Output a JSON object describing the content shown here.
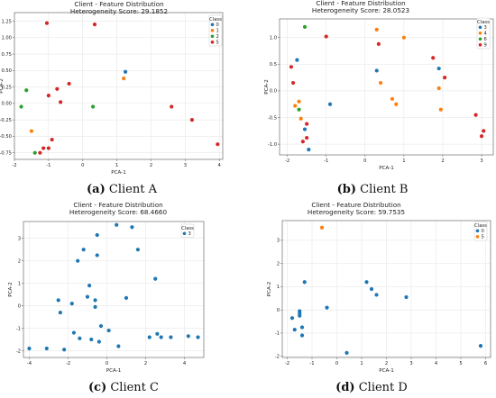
{
  "chart_data": [
    {
      "type": "scatter",
      "title": "Client - Feature Distribution",
      "subtitle": "Heterogeneity Score: 29.1852",
      "xlabel": "PCA-1",
      "ylabel": "PCA-2",
      "xlim": [
        -2.0,
        4.1
      ],
      "ylim": [
        -0.85,
        1.38
      ],
      "xticks": [
        "-2",
        "-1",
        "0",
        "1",
        "2",
        "3",
        "4"
      ],
      "xtick_values": [
        -2,
        -1,
        0,
        1,
        2,
        3,
        4
      ],
      "yticks": [
        "-0.75",
        "-0.50",
        "-0.25",
        "0.00",
        "0.25",
        "0.50",
        "0.75",
        "1.00",
        "1.25"
      ],
      "ytick_values": [
        -0.75,
        -0.5,
        -0.25,
        0,
        0.25,
        0.5,
        0.75,
        1.0,
        1.25
      ],
      "grid": true,
      "legend_title": "Class",
      "legend_position": "top-right",
      "caption_letter": "(a)",
      "caption_text": "Client A",
      "series": [
        {
          "name": "0",
          "color": "#1f77b4",
          "points": [
            [
              1.25,
              0.48
            ]
          ]
        },
        {
          "name": "1",
          "color": "#ff7f0e",
          "points": [
            [
              -1.5,
              -0.42
            ],
            [
              1.2,
              0.38
            ]
          ]
        },
        {
          "name": "2",
          "color": "#2ca02c",
          "points": [
            [
              -1.8,
              -0.05
            ],
            [
              -1.65,
              0.2
            ],
            [
              -1.4,
              -0.75
            ],
            [
              0.3,
              -0.05
            ]
          ]
        },
        {
          "name": "5",
          "color": "#d62728",
          "points": [
            [
              -1.05,
              1.22
            ],
            [
              0.35,
              1.2
            ],
            [
              -1.15,
              -0.68
            ],
            [
              -1.0,
              -0.68
            ],
            [
              -0.9,
              -0.55
            ],
            [
              -1.25,
              -0.75
            ],
            [
              -0.75,
              0.22
            ],
            [
              -1.0,
              0.12
            ],
            [
              -0.65,
              0.02
            ],
            [
              -0.4,
              0.3
            ],
            [
              2.6,
              -0.05
            ],
            [
              3.2,
              -0.25
            ],
            [
              3.95,
              -0.62
            ]
          ]
        }
      ]
    },
    {
      "type": "scatter",
      "title": "Client - Feature Distribution",
      "subtitle": "Heterogeneity Score: 28.0523",
      "xlabel": "PCA-1",
      "ylabel": "PCA-2",
      "xlim": [
        -2.2,
        3.3
      ],
      "ylim": [
        -1.2,
        1.35
      ],
      "xticks": [
        "-2",
        "-1",
        "0",
        "1",
        "2",
        "3"
      ],
      "xtick_values": [
        -2,
        -1,
        0,
        1,
        2,
        3
      ],
      "yticks": [
        "-1.0",
        "-0.5",
        "0.0",
        "0.5",
        "1.0"
      ],
      "ytick_values": [
        -1.0,
        -0.5,
        0,
        0.5,
        1.0
      ],
      "grid": true,
      "legend_title": "Class",
      "legend_position": "top-right",
      "caption_letter": "(b)",
      "caption_text": "Client B",
      "series": [
        {
          "name": "3",
          "color": "#1f77b4",
          "points": [
            [
              -1.75,
              0.58
            ],
            [
              -0.9,
              -0.25
            ],
            [
              0.3,
              0.38
            ],
            [
              1.9,
              0.42
            ],
            [
              -1.55,
              -0.72
            ],
            [
              -1.45,
              -1.1
            ]
          ]
        },
        {
          "name": "4",
          "color": "#ff7f0e",
          "points": [
            [
              -1.8,
              -0.28
            ],
            [
              -1.7,
              -0.2
            ],
            [
              -1.65,
              -0.52
            ],
            [
              0.3,
              1.15
            ],
            [
              0.4,
              0.15
            ],
            [
              0.7,
              -0.15
            ],
            [
              0.8,
              -0.25
            ],
            [
              1.0,
              1.0
            ],
            [
              1.9,
              0.05
            ],
            [
              1.95,
              -0.35
            ]
          ]
        },
        {
          "name": "6",
          "color": "#2ca02c",
          "points": [
            [
              -1.55,
              1.2
            ],
            [
              -1.7,
              -0.35
            ]
          ]
        },
        {
          "name": "9",
          "color": "#d62728",
          "points": [
            [
              -1.9,
              0.45
            ],
            [
              -1.85,
              0.15
            ],
            [
              -1.0,
              1.02
            ],
            [
              0.35,
              0.88
            ],
            [
              1.75,
              0.62
            ],
            [
              2.05,
              0.25
            ],
            [
              2.85,
              -0.45
            ],
            [
              3.05,
              -0.75
            ],
            [
              3.0,
              -0.85
            ],
            [
              -1.5,
              -0.88
            ],
            [
              -1.6,
              -0.95
            ],
            [
              -1.5,
              -0.62
            ]
          ]
        }
      ]
    },
    {
      "type": "scatter",
      "title": "Client - Feature Distribution",
      "subtitle": "Heterogeneity Score: 68.4660",
      "xlabel": "PCA-1",
      "ylabel": "PCA-2",
      "xlim": [
        -4.3,
        5.0
      ],
      "ylim": [
        -2.3,
        3.75
      ],
      "xticks": [
        "-4",
        "-2",
        "0",
        "2",
        "4"
      ],
      "xtick_values": [
        -4,
        -2,
        0,
        2,
        4
      ],
      "yticks": [
        "-2",
        "-1",
        "0",
        "1",
        "2",
        "3"
      ],
      "ytick_values": [
        -2,
        -1,
        0,
        1,
        2,
        3
      ],
      "grid": true,
      "legend_title": "Class",
      "legend_position": "top-right",
      "caption_letter": "(c)",
      "caption_text": "Client C",
      "series": [
        {
          "name": "3",
          "color": "#1f77b4",
          "points": [
            [
              -4.0,
              -1.9
            ],
            [
              -3.1,
              -1.9
            ],
            [
              -2.5,
              0.25
            ],
            [
              -2.4,
              -0.3
            ],
            [
              -2.2,
              -1.95
            ],
            [
              -1.8,
              0.1
            ],
            [
              -1.7,
              -1.2
            ],
            [
              -1.5,
              2.0
            ],
            [
              -1.4,
              -1.45
            ],
            [
              -1.2,
              2.5
            ],
            [
              -1.0,
              0.4
            ],
            [
              -0.9,
              0.9
            ],
            [
              -0.8,
              -1.5
            ],
            [
              -0.6,
              0.25
            ],
            [
              -0.6,
              -0.05
            ],
            [
              -0.5,
              3.15
            ],
            [
              -0.5,
              2.25
            ],
            [
              -0.4,
              -1.6
            ],
            [
              -0.3,
              -0.9
            ],
            [
              0.1,
              -1.1
            ],
            [
              0.5,
              3.6
            ],
            [
              0.6,
              -1.8
            ],
            [
              1.0,
              0.35
            ],
            [
              1.3,
              3.5
            ],
            [
              1.6,
              2.5
            ],
            [
              2.2,
              -1.4
            ],
            [
              2.5,
              1.2
            ],
            [
              2.6,
              -1.25
            ],
            [
              2.8,
              -1.4
            ],
            [
              3.3,
              -1.4
            ],
            [
              4.2,
              -1.35
            ],
            [
              4.7,
              -1.4
            ]
          ]
        }
      ]
    },
    {
      "type": "scatter",
      "title": "Client - Feature Distribution",
      "subtitle": "Heterogeneity Score: 59.7535",
      "xlabel": "PCA-1",
      "ylabel": "PCA-2",
      "xlim": [
        -2.2,
        6.2
      ],
      "ylim": [
        -2.05,
        3.85
      ],
      "xticks": [
        "-2",
        "-1",
        "0",
        "1",
        "2",
        "3",
        "4",
        "5",
        "6"
      ],
      "xtick_values": [
        -2,
        -1,
        0,
        1,
        2,
        3,
        4,
        5,
        6
      ],
      "yticks": [
        "-2",
        "-1",
        "0",
        "1",
        "2",
        "3"
      ],
      "ytick_values": [
        -2,
        -1,
        0,
        1,
        2,
        3
      ],
      "grid": true,
      "legend_title": "Class",
      "legend_position": "top-right",
      "caption_letter": "(d)",
      "caption_text": "Client D",
      "series": [
        {
          "name": "0",
          "color": "#1f77b4",
          "points": [
            [
              -1.8,
              -0.35
            ],
            [
              -1.7,
              -0.85
            ],
            [
              -1.5,
              -0.05
            ],
            [
              -1.5,
              -0.15
            ],
            [
              -1.5,
              -0.25
            ],
            [
              -1.4,
              -0.75
            ],
            [
              -1.4,
              -1.1
            ],
            [
              -1.3,
              1.2
            ],
            [
              -0.4,
              0.1
            ],
            [
              0.4,
              -1.85
            ],
            [
              1.2,
              1.2
            ],
            [
              1.4,
              0.9
            ],
            [
              1.6,
              0.65
            ],
            [
              2.8,
              0.55
            ],
            [
              5.8,
              -1.55
            ]
          ]
        },
        {
          "name": "5",
          "color": "#ff7f0e",
          "points": [
            [
              -0.6,
              3.55
            ]
          ]
        }
      ]
    }
  ]
}
